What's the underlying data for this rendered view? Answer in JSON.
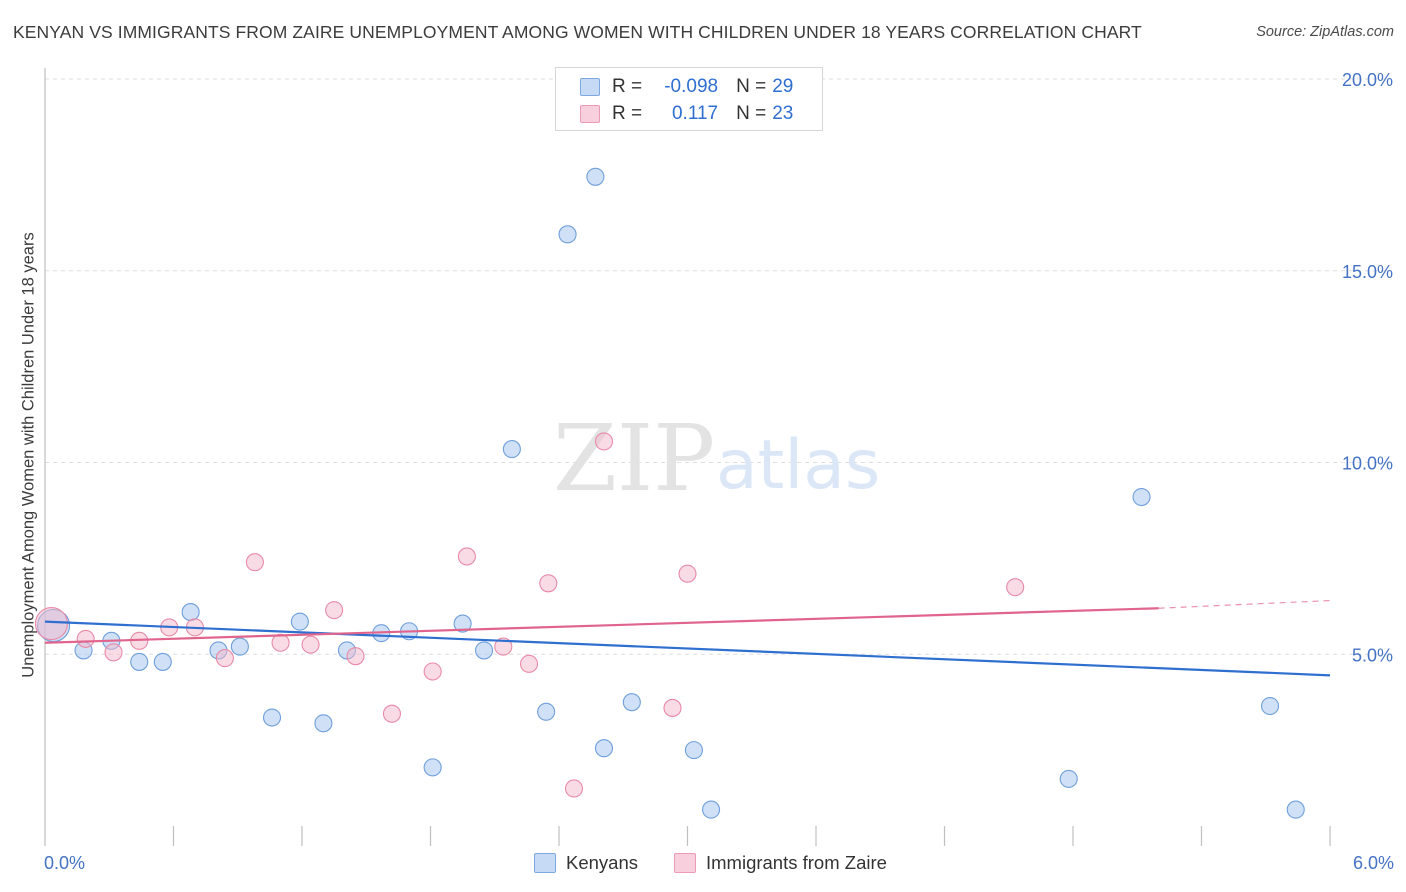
{
  "title": "KENYAN VS IMMIGRANTS FROM ZAIRE UNEMPLOYMENT AMONG WOMEN WITH CHILDREN UNDER 18 YEARS CORRELATION CHART",
  "source": "Source: ZipAtlas.com",
  "watermark": {
    "zip": "ZIP",
    "atlas": "atlas"
  },
  "legend": {
    "rows": [
      {
        "r_label": "R =",
        "r_value": "-0.098",
        "n_label": "N =",
        "n_value": "29",
        "color": "#a9c6ef"
      },
      {
        "r_label": "R =",
        "r_value": "0.117",
        "n_label": "N =",
        "n_value": "23",
        "color": "#f4b8cb"
      }
    ]
  },
  "bottom_legend": [
    {
      "label": "Kenyans",
      "color": "#a9c6ef"
    },
    {
      "label": "Immigrants from Zaire",
      "color": "#f4b8cb"
    }
  ],
  "chart_data": {
    "type": "scatter",
    "title": "KENYAN VS IMMIGRANTS FROM ZAIRE UNEMPLOYMENT AMONG WOMEN WITH CHILDREN UNDER 18 YEARS CORRELATION CHART",
    "xlabel": "",
    "ylabel": "Unemployment Among Women with Children Under 18 years",
    "xlim": [
      0,
      6
    ],
    "ylim": [
      0,
      20.5
    ],
    "x_tick_labels": [
      {
        "value": 0,
        "label": "0.0%"
      },
      {
        "value": 6,
        "label": "6.0%"
      }
    ],
    "y_tick_labels": [
      {
        "value": 5,
        "label": "5.0%"
      },
      {
        "value": 10,
        "label": "10.0%"
      },
      {
        "value": 15,
        "label": "15.0%"
      },
      {
        "value": 20,
        "label": "20.0%"
      }
    ],
    "series": [
      {
        "name": "Kenyans",
        "color": "#a9c6ef",
        "stroke": "#6f9fdb",
        "line_color": "#2f6fd0",
        "trend": {
          "x0": 0,
          "y0": 5.85,
          "x1": 6,
          "y1": 4.45
        },
        "points": [
          {
            "x": 0.04,
            "y": 5.75,
            "size": "large"
          },
          {
            "x": 0.18,
            "y": 5.1
          },
          {
            "x": 0.31,
            "y": 5.35
          },
          {
            "x": 0.44,
            "y": 4.8
          },
          {
            "x": 0.55,
            "y": 4.8
          },
          {
            "x": 0.68,
            "y": 6.1
          },
          {
            "x": 0.81,
            "y": 5.1
          },
          {
            "x": 0.91,
            "y": 5.2
          },
          {
            "x": 1.06,
            "y": 3.35
          },
          {
            "x": 1.19,
            "y": 5.85
          },
          {
            "x": 1.3,
            "y": 3.2
          },
          {
            "x": 1.41,
            "y": 5.1
          },
          {
            "x": 1.57,
            "y": 5.55
          },
          {
            "x": 1.7,
            "y": 5.6
          },
          {
            "x": 1.81,
            "y": 2.05
          },
          {
            "x": 1.95,
            "y": 5.8
          },
          {
            "x": 2.05,
            "y": 5.1
          },
          {
            "x": 2.18,
            "y": 10.35
          },
          {
            "x": 2.34,
            "y": 3.5
          },
          {
            "x": 2.44,
            "y": 15.95
          },
          {
            "x": 2.57,
            "y": 17.45
          },
          {
            "x": 2.61,
            "y": 2.55
          },
          {
            "x": 2.74,
            "y": 3.75
          },
          {
            "x": 3.03,
            "y": 2.5
          },
          {
            "x": 3.11,
            "y": 0.95
          },
          {
            "x": 4.78,
            "y": 1.75
          },
          {
            "x": 5.12,
            "y": 9.1
          },
          {
            "x": 5.72,
            "y": 3.65
          },
          {
            "x": 5.84,
            "y": 0.95
          }
        ]
      },
      {
        "name": "Immigrants from Zaire",
        "color": "#f4b8cb",
        "stroke": "#e88aa6",
        "line_color": "#e0648c",
        "trend": {
          "x0": 0,
          "y0": 5.3,
          "x1": 5.2,
          "y1": 6.2
        },
        "trend_dashed": {
          "x0": 5.2,
          "y0": 6.2,
          "x1": 6,
          "y1": 6.4
        },
        "points": [
          {
            "x": 0.03,
            "y": 5.8,
            "size": "large"
          },
          {
            "x": 0.19,
            "y": 5.4
          },
          {
            "x": 0.32,
            "y": 5.05
          },
          {
            "x": 0.44,
            "y": 5.35
          },
          {
            "x": 0.58,
            "y": 5.7
          },
          {
            "x": 0.7,
            "y": 5.7
          },
          {
            "x": 0.84,
            "y": 4.9
          },
          {
            "x": 0.98,
            "y": 7.4
          },
          {
            "x": 1.1,
            "y": 5.3
          },
          {
            "x": 1.24,
            "y": 5.25
          },
          {
            "x": 1.35,
            "y": 6.15
          },
          {
            "x": 1.45,
            "y": 4.95
          },
          {
            "x": 1.62,
            "y": 3.45
          },
          {
            "x": 1.81,
            "y": 4.55
          },
          {
            "x": 1.97,
            "y": 7.55
          },
          {
            "x": 2.14,
            "y": 5.2
          },
          {
            "x": 2.26,
            "y": 4.75
          },
          {
            "x": 2.35,
            "y": 6.85
          },
          {
            "x": 2.47,
            "y": 1.5
          },
          {
            "x": 2.61,
            "y": 10.55
          },
          {
            "x": 2.93,
            "y": 3.6
          },
          {
            "x": 3.0,
            "y": 7.1
          },
          {
            "x": 4.53,
            "y": 6.75
          }
        ]
      }
    ]
  }
}
